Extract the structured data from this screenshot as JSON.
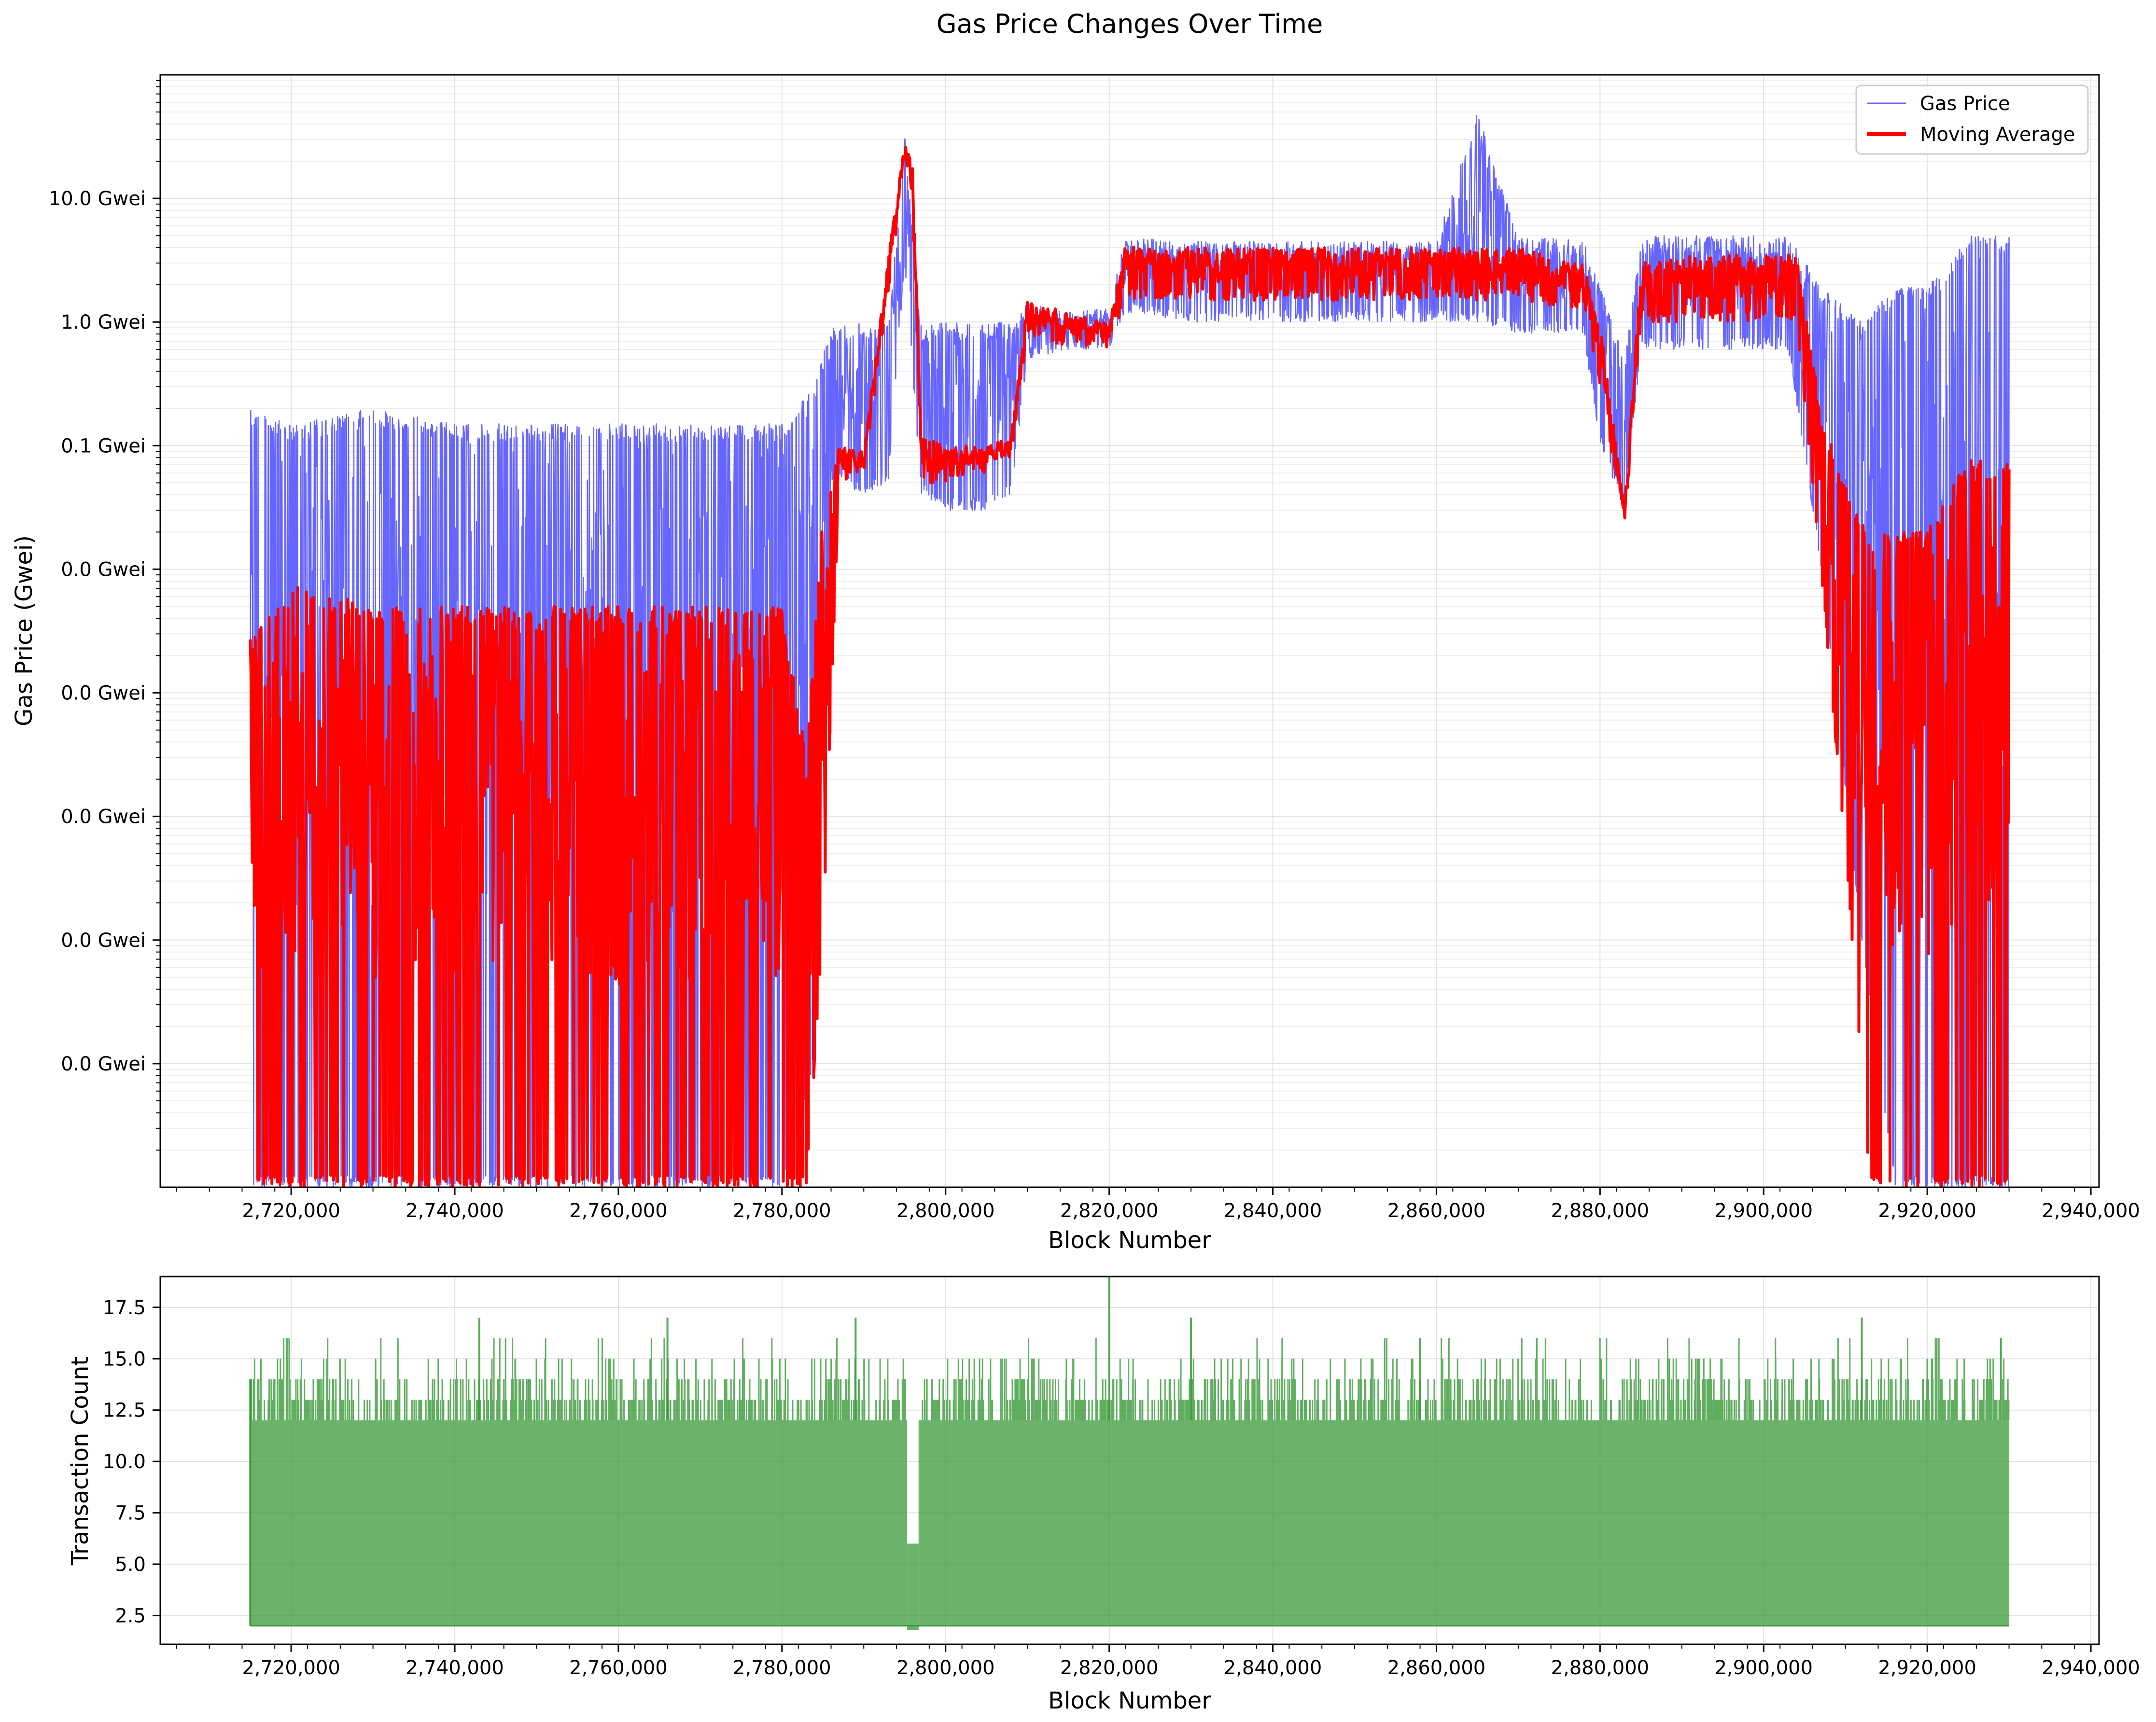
{
  "figure_title": "Gas Price Changes Over Time",
  "chart_data": [
    {
      "type": "line",
      "title": "Gas Price Changes Over Time",
      "xlabel": "Block Number",
      "ylabel": "Gas Price (Gwei)",
      "y_scale": "log",
      "xlim": [
        2704000,
        2941000
      ],
      "ylim_gwei": [
        1e-07,
        100
      ],
      "x_ticks": [
        2720000,
        2740000,
        2760000,
        2780000,
        2800000,
        2820000,
        2840000,
        2860000,
        2880000,
        2900000,
        2920000,
        2940000
      ],
      "x_tick_labels": [
        "2,720,000",
        "2,740,000",
        "2,760,000",
        "2,780,000",
        "2,800,000",
        "2,820,000",
        "2,840,000",
        "2,860,000",
        "2,880,000",
        "2,900,000",
        "2,920,000",
        "2,940,000"
      ],
      "y_ticks_gwei": [
        1e-06,
        1e-05,
        0.0001,
        0.001,
        0.01,
        0.1,
        1.0,
        10.0
      ],
      "y_tick_labels": [
        "0.0 Gwei",
        "0.0 Gwei",
        "0.0 Gwei",
        "0.0 Gwei",
        "0.0 Gwei",
        "0.1 Gwei",
        "1.0 Gwei",
        "10.0 Gwei"
      ],
      "grid": true,
      "legend": "top-right",
      "series": [
        {
          "name": "Gas Price",
          "color": "#6666ff",
          "style": "thin line, dense spikes",
          "envelope_x": [
            2715000,
            2720000,
            2730000,
            2740000,
            2750000,
            2760000,
            2770000,
            2775000,
            2780000,
            2784000,
            2786000,
            2790000,
            2793000,
            2795000,
            2797000,
            2800000,
            2805000,
            2808000,
            2810000,
            2815000,
            2820000,
            2822000,
            2830000,
            2840000,
            2850000,
            2860000,
            2865000,
            2870000,
            2878000,
            2880000,
            2883000,
            2885000,
            2890000,
            2900000,
            2903000,
            2907000,
            2912000,
            2916000,
            2920000,
            2925000,
            2930000
          ],
          "envelope_high": [
            0.2,
            0.15,
            0.2,
            0.15,
            0.15,
            0.15,
            0.15,
            0.15,
            0.15,
            0.3,
            1.0,
            1.0,
            1.0,
            35.0,
            1.0,
            1.0,
            1.0,
            1.0,
            1.5,
            1.2,
            1.3,
            5.0,
            4.5,
            4.5,
            4.5,
            4.5,
            50.0,
            5.0,
            4.5,
            2.0,
            0.5,
            5.0,
            5.0,
            5.0,
            5.0,
            2.0,
            1.0,
            2.0,
            2.0,
            5.0,
            5.0
          ],
          "envelope_low": [
            1e-07,
            1e-07,
            1e-07,
            1e-07,
            1e-07,
            1e-07,
            1e-07,
            1e-07,
            1e-07,
            1e-06,
            0.05,
            0.04,
            0.05,
            3.0,
            0.04,
            0.03,
            0.03,
            0.04,
            0.5,
            0.6,
            0.6,
            1.2,
            1.0,
            1.0,
            1.0,
            1.0,
            1.0,
            0.8,
            0.8,
            0.1,
            0.03,
            0.6,
            0.6,
            0.6,
            0.6,
            0.01,
            1e-05,
            1e-07,
            1e-07,
            1e-07,
            1e-07
          ]
        },
        {
          "name": "Moving Average",
          "color": "#ff0000",
          "style": "thick line",
          "envelope_x": [
            2715000,
            2720000,
            2730000,
            2740000,
            2750000,
            2760000,
            2770000,
            2775000,
            2780000,
            2783000,
            2785000,
            2787000,
            2790000,
            2793000,
            2795000,
            2796000,
            2797000,
            2800000,
            2805000,
            2808000,
            2810000,
            2815000,
            2820000,
            2822000,
            2830000,
            2840000,
            2850000,
            2860000,
            2870000,
            2878000,
            2880000,
            2883000,
            2885000,
            2890000,
            2900000,
            2904000,
            2907000,
            2910000,
            2913000,
            2916000,
            2920000,
            2925000,
            2930000
          ],
          "envelope_high": [
            0.003,
            0.008,
            0.005,
            0.005,
            0.005,
            0.005,
            0.005,
            0.005,
            0.005,
            0.0003,
            0.03,
            0.1,
            0.09,
            3.5,
            28.0,
            20.0,
            0.12,
            0.1,
            0.1,
            0.12,
            1.5,
            1.2,
            1.0,
            4.5,
            4.0,
            4.0,
            4.0,
            4.0,
            4.0,
            3.0,
            1.0,
            0.03,
            3.0,
            3.5,
            3.5,
            3.5,
            0.2,
            0.05,
            0.02,
            0.02,
            0.02,
            0.08,
            0.07
          ],
          "envelope_low": [
            1e-07,
            1e-07,
            1e-07,
            1e-07,
            1e-07,
            1e-07,
            1e-07,
            1e-07,
            1e-07,
            1e-07,
            1e-05,
            0.05,
            0.06,
            1.5,
            20.0,
            8.0,
            0.05,
            0.05,
            0.06,
            0.08,
            0.8,
            0.6,
            0.6,
            1.5,
            1.5,
            1.5,
            1.5,
            1.5,
            1.5,
            1.2,
            0.3,
            0.02,
            1.0,
            1.0,
            1.0,
            1.0,
            0.01,
            5e-05,
            1e-07,
            1e-07,
            1e-07,
            1e-07,
            1e-07
          ]
        }
      ]
    },
    {
      "type": "area",
      "title": "",
      "xlabel": "Block Number",
      "ylabel": "Transaction Count",
      "xlim": [
        2704000,
        2941000
      ],
      "ylim": [
        1.1,
        19.0
      ],
      "x_ticks": [
        2720000,
        2740000,
        2760000,
        2780000,
        2800000,
        2820000,
        2840000,
        2860000,
        2880000,
        2900000,
        2920000,
        2940000
      ],
      "x_tick_labels": [
        "2,720,000",
        "2,740,000",
        "2,760,000",
        "2,780,000",
        "2,800,000",
        "2,820,000",
        "2,840,000",
        "2,860,000",
        "2,880,000",
        "2,900,000",
        "2,920,000",
        "2,940,000"
      ],
      "y_ticks": [
        2.5,
        5.0,
        7.5,
        10.0,
        12.5,
        15.0,
        17.5
      ],
      "y_tick_labels": [
        "2.5",
        "5.0",
        "7.5",
        "10.0",
        "12.5",
        "15.0",
        "17.5"
      ],
      "grid": true,
      "series": [
        {
          "color": "#3a9a3a",
          "floor": 2.0,
          "typical_high": 12.5,
          "x_range": [
            2715000,
            2930000
          ],
          "peaks": [
            {
              "x": 2743000,
              "y": 17.0
            },
            {
              "x": 2766000,
              "y": 17.0
            },
            {
              "x": 2789000,
              "y": 17.0
            },
            {
              "x": 2820000,
              "y": 19.0
            },
            {
              "x": 2830000,
              "y": 17.0
            },
            {
              "x": 2858000,
              "y": 16.0
            },
            {
              "x": 2912000,
              "y": 17.0
            },
            {
              "x": 2929000,
              "y": 16.0
            }
          ],
          "gap": {
            "x": 2796000,
            "low": 1.8,
            "high": 6.0
          }
        }
      ]
    }
  ]
}
